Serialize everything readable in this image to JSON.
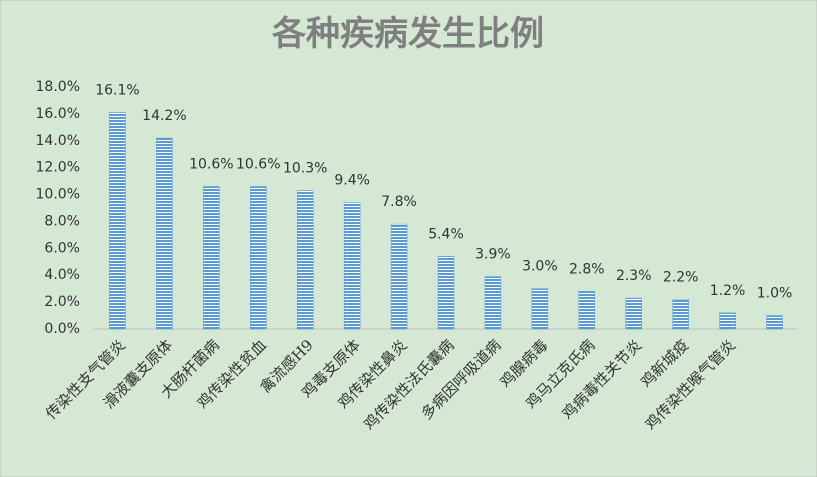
{
  "chart_data": {
    "type": "bar",
    "title": "各种疾病发生比例",
    "categories": [
      "传染性支气管炎",
      "滑液囊支原体",
      "大肠杆菌病",
      "鸡传染性贫血",
      "禽流感H9",
      "鸡毒支原体",
      "鸡传染性鼻炎",
      "鸡传染性法氏囊病",
      "多病因呼吸道病",
      "鸡腺病毒",
      "鸡马立克氏病",
      "鸡病毒性关节炎",
      "鸡新城疫",
      "鸡传染性喉气管炎",
      null
    ],
    "values": [
      16.1,
      14.2,
      10.6,
      10.6,
      10.3,
      9.4,
      7.8,
      5.4,
      3.9,
      3.0,
      2.8,
      2.3,
      2.2,
      1.2,
      1.0
    ],
    "value_labels": [
      "16.1%",
      "14.2%",
      "10.6%",
      "10.6%",
      "10.3%",
      "9.4%",
      "7.8%",
      "5.4%",
      "3.9%",
      "3.0%",
      "2.8%",
      "2.3%",
      "2.2%",
      "1.2%",
      "1.0%"
    ],
    "color": "#5b9bd5",
    "ylim": [
      0,
      18
    ],
    "yticks": [
      {
        "value": 0,
        "label": "0.0%"
      },
      {
        "value": 2,
        "label": "2.0%"
      },
      {
        "value": 4,
        "label": "4.0%"
      },
      {
        "value": 6,
        "label": "6.0%"
      },
      {
        "value": 8,
        "label": "8.0%"
      },
      {
        "value": 10,
        "label": "10.0%"
      },
      {
        "value": 12,
        "label": "12.0%"
      },
      {
        "value": 14,
        "label": "14.0%"
      },
      {
        "value": 16,
        "label": "16.0%"
      },
      {
        "value": 18,
        "label": "18.0%"
      }
    ],
    "grid": false
  }
}
